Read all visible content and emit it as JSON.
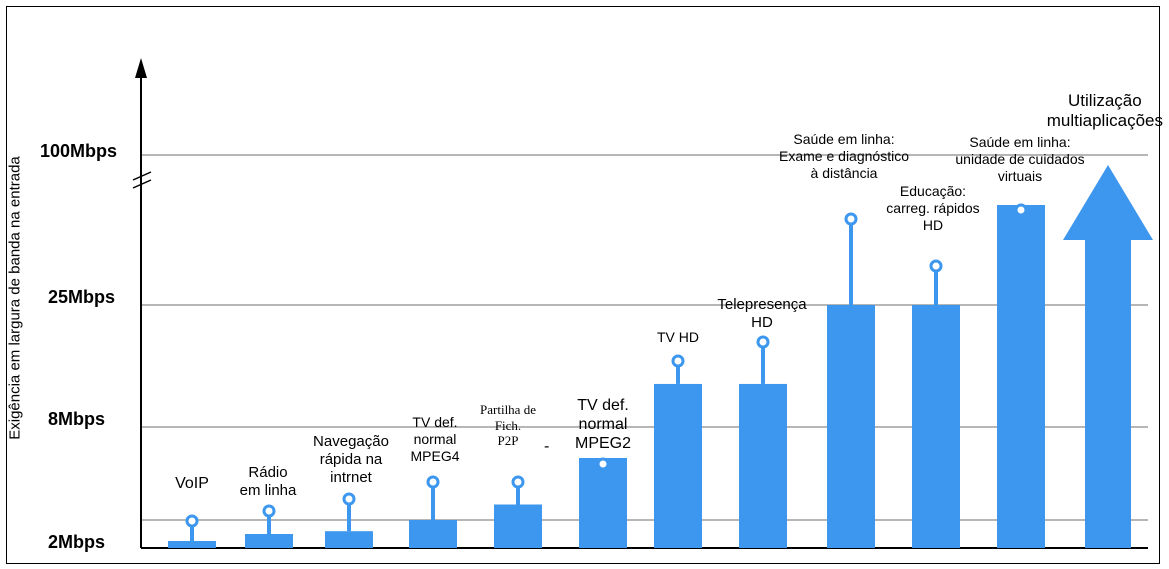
{
  "chart_data": {
    "type": "bar",
    "ylabel": "Exigência em largura de banda na entrada",
    "y_ticks": [
      "2Mbps",
      "8Mbps",
      "25Mbps",
      "100Mbps"
    ],
    "y_tick_values": [
      2,
      8,
      25,
      100
    ],
    "y_scale": "broken-nonlinear",
    "grid": true,
    "categories": [
      "VoIP",
      "Rádio\nem linha",
      "Navegação\nrápida na\nintrnet",
      "TV def.\nnormal\nMPEG4",
      "Partilha de\nFich.\nP2P",
      "TV def.\nnormal\nMPEG2",
      "TV HD",
      "Telepresença\nHD",
      "Saúde em linha:\nExame e diagnóstico\nà distância",
      "Educação:\ncarreg. rápidos\nHD",
      "Saúde em linha:\nunidade de cuidados\nvirtuais",
      "Utilização\nmultiaplicações"
    ],
    "values": [
      0.5,
      1,
      1.2,
      2,
      3,
      6,
      14,
      14,
      25,
      25,
      75,
      100
    ],
    "stray_mark": "-",
    "color": "#3d97ee"
  }
}
